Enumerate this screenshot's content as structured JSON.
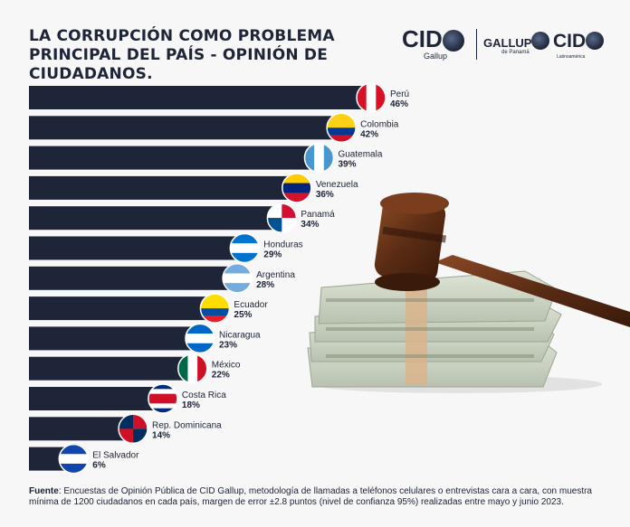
{
  "title": "LA CORRUPCIÓN COMO PROBLEMA PRINCIPAL DEL PAÍS - OPINIÓN DE CIUDADANOS.",
  "logos": {
    "cid_gallup": {
      "main": "CID",
      "sub": "Gallup"
    },
    "gallup_panama": {
      "main": "GALLUP",
      "sub": "de Panamá"
    },
    "cid_latino": {
      "main": "CID",
      "sub": "Latinoamérica"
    }
  },
  "colors": {
    "bar": "#1e2538",
    "background": "#f7f7f7",
    "text": "#1b2236"
  },
  "chart_data": {
    "type": "bar",
    "orientation": "horizontal",
    "title": "LA CORRUPCIÓN COMO PROBLEMA PRINCIPAL DEL PAÍS - OPINIÓN DE CIUDADANOS.",
    "xlabel": "",
    "ylabel": "",
    "xlim": [
      0,
      46
    ],
    "unit": "%",
    "categories": [
      "Perú",
      "Colombia",
      "Guatemala",
      "Venezuela",
      "Panamá",
      "Honduras",
      "Argentina",
      "Ecuador",
      "Nicaragua",
      "México",
      "Costa Rica",
      "Rep. Dominicana",
      "El Salvador"
    ],
    "values": [
      46,
      42,
      39,
      36,
      34,
      29,
      28,
      25,
      23,
      22,
      18,
      14,
      6
    ],
    "value_labels": [
      "46%",
      "42%",
      "39%",
      "36%",
      "34%",
      "29%",
      "28%",
      "25%",
      "23%",
      "22%",
      "18%",
      "14%",
      "6%"
    ],
    "flags": [
      "peru-flag-icon",
      "colombia-flag-icon",
      "guatemala-flag-icon",
      "venezuela-flag-icon",
      "panama-flag-icon",
      "honduras-flag-icon",
      "argentina-flag-icon",
      "ecuador-flag-icon",
      "nicaragua-flag-icon",
      "mexico-flag-icon",
      "costa-rica-flag-icon",
      "dominican-republic-flag-icon",
      "el-salvador-flag-icon"
    ]
  },
  "illustration": {
    "icon": "gavel-on-money-icon"
  },
  "footer": {
    "label": "Fuente",
    "text": ": Encuestas de Opinión Pública de CID Gallup, metodología de llamadas a teléfonos celulares o entrevistas cara a cara, con muestra mínima de 1200 ciudadanos en cada país, margen de error ±2.8 puntos (nivel de confianza 95%) realizadas entre mayo y junio 2023."
  }
}
